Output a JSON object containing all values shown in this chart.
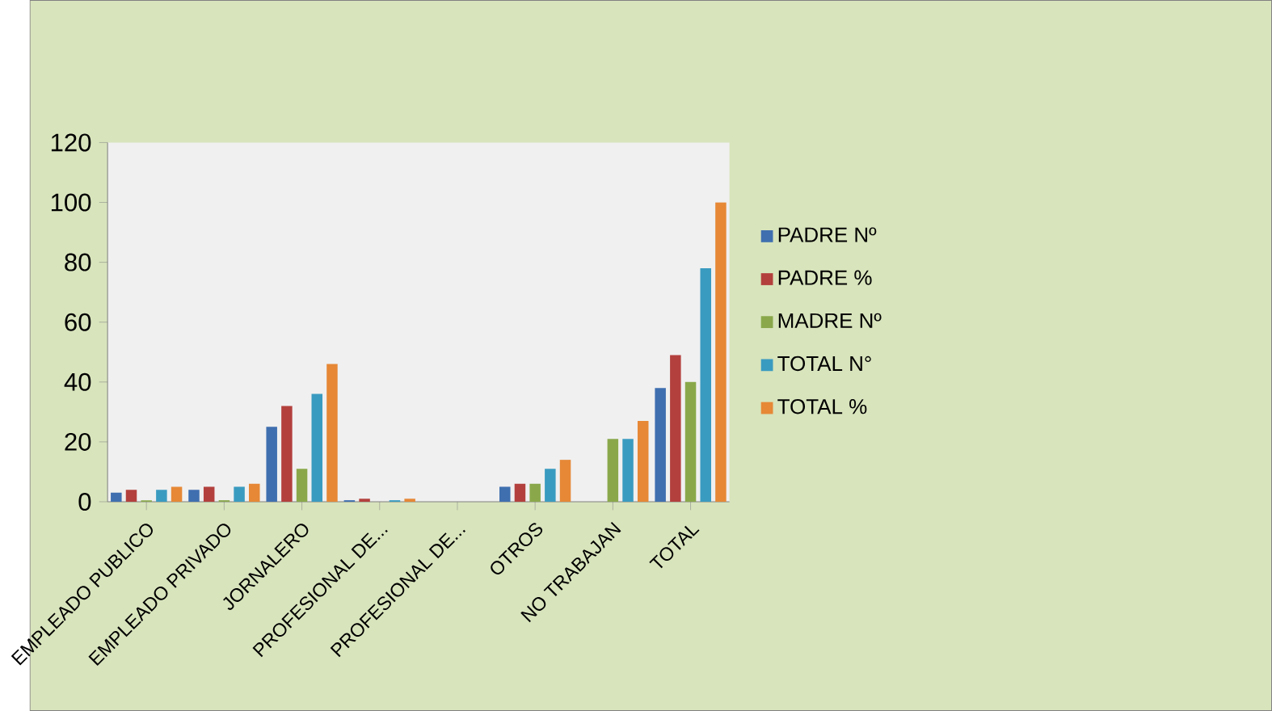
{
  "chart_data": {
    "type": "bar",
    "categories": [
      "EMPLEADO PUBLICO",
      "EMPLEADO PRIVADO",
      "JORNALERO",
      "PROFESIONAL DE...",
      "PROFESIONAL DE...",
      "OTROS",
      "NO TRABAJAN",
      "TOTAL"
    ],
    "series": [
      {
        "name": "PADRE Nº",
        "color": "#3f6faf",
        "values": [
          3,
          4,
          25,
          0.5,
          0,
          5,
          0,
          38
        ]
      },
      {
        "name": "PADRE %",
        "color": "#b3403d",
        "values": [
          4,
          5,
          32,
          1,
          0,
          6,
          0,
          49
        ]
      },
      {
        "name": "MADRE Nº",
        "color": "#8aa84a",
        "values": [
          0.5,
          0.5,
          11,
          0,
          0,
          6,
          21,
          40
        ]
      },
      {
        "name": "TOTAL N°",
        "color": "#3a9bc0",
        "values": [
          4,
          5,
          36,
          0.5,
          0,
          11,
          21,
          78
        ]
      },
      {
        "name": "TOTAL %",
        "color": "#e68836",
        "values": [
          5,
          6,
          46,
          1,
          0,
          14,
          27,
          100
        ]
      }
    ],
    "ylim": [
      0,
      120
    ],
    "yticks": [
      0,
      20,
      40,
      60,
      80,
      100,
      120
    ],
    "grid": false,
    "legend": "right"
  }
}
